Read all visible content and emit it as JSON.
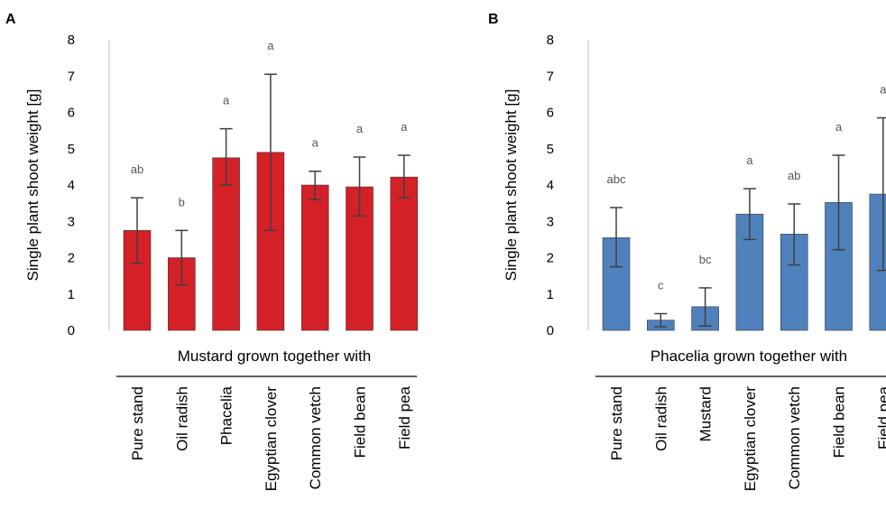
{
  "chart_data": [
    {
      "panel": "A",
      "type": "bar",
      "ylabel": "Single plant shoot weight [g]",
      "xlabel": "Mustard grown together with",
      "ylim": [
        0,
        8
      ],
      "yticks": [
        0,
        1,
        2,
        3,
        4,
        5,
        6,
        7,
        8
      ],
      "grid": false,
      "color": "#d42027",
      "categories": [
        "Pure stand",
        "Oil radish",
        "Phacelia",
        "Egyptian clover",
        "Common vetch",
        "Field bean",
        "Field pea"
      ],
      "values": [
        2.75,
        2.0,
        4.75,
        4.9,
        4.0,
        3.95,
        4.22
      ],
      "error_low": [
        1.85,
        1.25,
        4.0,
        2.75,
        3.6,
        3.15,
        3.65
      ],
      "error_high": [
        3.65,
        2.75,
        5.55,
        7.05,
        4.38,
        4.77,
        4.82
      ],
      "significance": [
        "ab",
        "b",
        "a",
        "a",
        "a",
        "a",
        "a"
      ]
    },
    {
      "panel": "B",
      "type": "bar",
      "ylabel": "Single plant shoot weight [g]",
      "xlabel": "Phacelia grown together with",
      "ylim": [
        0,
        8
      ],
      "yticks": [
        0,
        1,
        2,
        3,
        4,
        5,
        6,
        7,
        8
      ],
      "grid": false,
      "color": "#4f81bd",
      "categories": [
        "Pure stand",
        "Oil radish",
        "Mustard",
        "Egyptian clover",
        "Common vetch",
        "Field bean",
        "Field pea"
      ],
      "values": [
        2.55,
        0.28,
        0.65,
        3.2,
        2.65,
        3.52,
        3.75
      ],
      "error_low": [
        1.75,
        0.1,
        0.12,
        2.5,
        1.8,
        2.22,
        1.65
      ],
      "error_high": [
        3.38,
        0.46,
        1.17,
        3.9,
        3.48,
        4.82,
        5.85
      ],
      "significance": [
        "abc",
        "c",
        "bc",
        "a",
        "ab",
        "a",
        "a"
      ]
    }
  ]
}
